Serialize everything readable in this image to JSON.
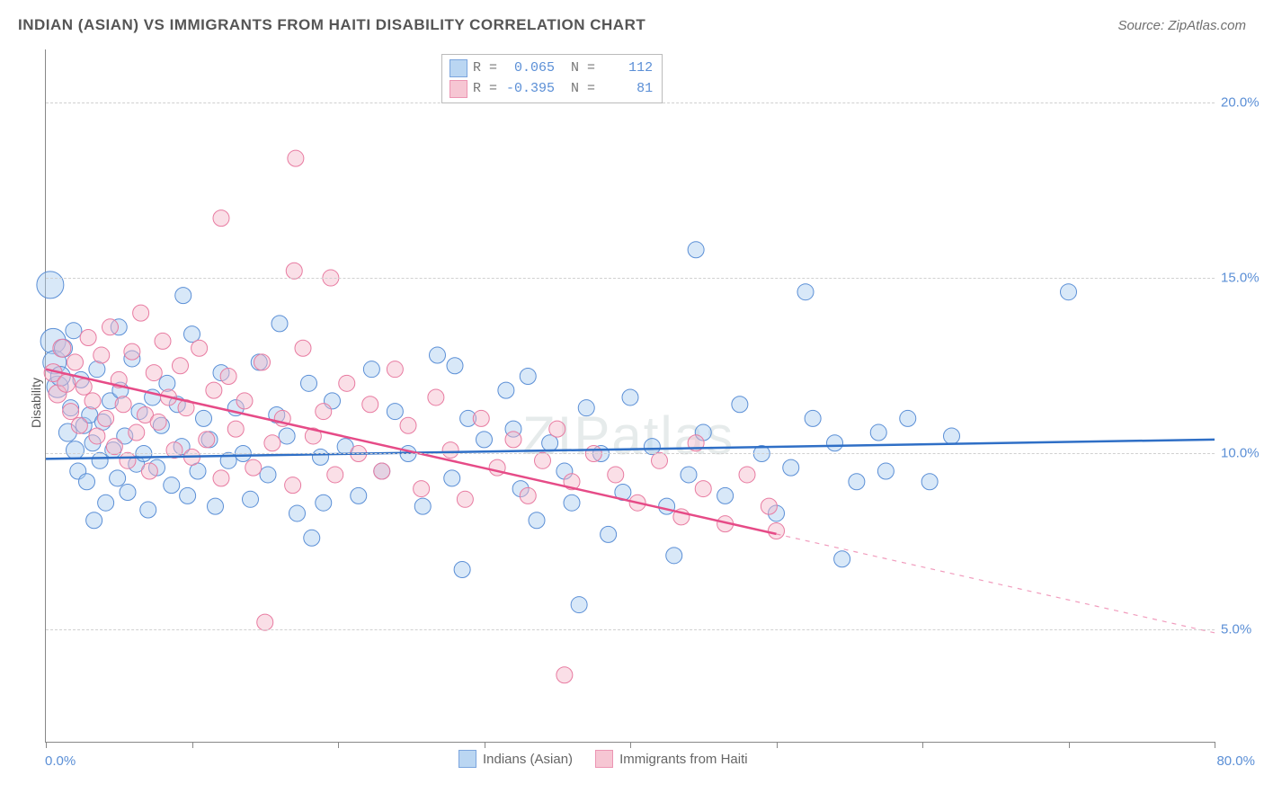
{
  "title": "INDIAN (ASIAN) VS IMMIGRANTS FROM HAITI DISABILITY CORRELATION CHART",
  "source": "Source: ZipAtlas.com",
  "watermark": "ZIPatlas",
  "y_axis_title": "Disability",
  "chart": {
    "type": "scatter",
    "xlim": [
      0,
      80
    ],
    "ylim_visible": [
      1.8,
      21.5
    ],
    "y_ticks": [
      5.0,
      10.0,
      15.0,
      20.0
    ],
    "y_tick_labels": [
      "5.0%",
      "10.0%",
      "15.0%",
      "20.0%"
    ],
    "x_tick_positions": [
      0,
      10,
      20,
      30,
      40,
      50,
      60,
      70,
      80
    ],
    "x_label_start": "0.0%",
    "x_label_end": "80.0%",
    "background_color": "#ffffff",
    "grid_color": "#d0d0d0",
    "axis_color": "#888888",
    "marker_opacity": 0.45,
    "marker_radius_default": 9
  },
  "series": [
    {
      "key": "indians",
      "label": "Indians (Asian)",
      "fill": "#a9cdf0",
      "stroke": "#5b8fd6",
      "trend_color": "#2f6fc6",
      "R": "0.065",
      "N": "112",
      "trend": {
        "x1": 0,
        "y1": 9.85,
        "x2": 80,
        "y2": 10.4
      },
      "trend_solid_to_x": 80,
      "points": [
        {
          "x": 0.3,
          "y": 14.8,
          "r": 15
        },
        {
          "x": 0.5,
          "y": 13.2,
          "r": 14
        },
        {
          "x": 0.6,
          "y": 12.6,
          "r": 13
        },
        {
          "x": 0.8,
          "y": 11.9,
          "r": 12
        },
        {
          "x": 1.0,
          "y": 12.2,
          "r": 11
        },
        {
          "x": 1.2,
          "y": 13.0,
          "r": 10
        },
        {
          "x": 1.5,
          "y": 10.6,
          "r": 10
        },
        {
          "x": 1.7,
          "y": 11.3,
          "r": 9
        },
        {
          "x": 1.9,
          "y": 13.5,
          "r": 9
        },
        {
          "x": 2.0,
          "y": 10.1,
          "r": 10
        },
        {
          "x": 2.2,
          "y": 9.5,
          "r": 9
        },
        {
          "x": 2.4,
          "y": 12.1,
          "r": 9
        },
        {
          "x": 2.6,
          "y": 10.8,
          "r": 9
        },
        {
          "x": 2.8,
          "y": 9.2,
          "r": 9
        },
        {
          "x": 3.0,
          "y": 11.1,
          "r": 9
        },
        {
          "x": 3.2,
          "y": 10.3,
          "r": 9
        },
        {
          "x": 3.5,
          "y": 12.4,
          "r": 9
        },
        {
          "x": 3.7,
          "y": 9.8,
          "r": 9
        },
        {
          "x": 3.9,
          "y": 10.9,
          "r": 9
        },
        {
          "x": 4.1,
          "y": 8.6,
          "r": 9
        },
        {
          "x": 4.4,
          "y": 11.5,
          "r": 9
        },
        {
          "x": 4.6,
          "y": 10.1,
          "r": 9
        },
        {
          "x": 4.9,
          "y": 9.3,
          "r": 9
        },
        {
          "x": 5.1,
          "y": 11.8,
          "r": 9
        },
        {
          "x": 5.4,
          "y": 10.5,
          "r": 9
        },
        {
          "x": 5.6,
          "y": 8.9,
          "r": 9
        },
        {
          "x": 5.9,
          "y": 12.7,
          "r": 9
        },
        {
          "x": 6.2,
          "y": 9.7,
          "r": 9
        },
        {
          "x": 6.4,
          "y": 11.2,
          "r": 9
        },
        {
          "x": 6.7,
          "y": 10.0,
          "r": 9
        },
        {
          "x": 7.0,
          "y": 8.4,
          "r": 9
        },
        {
          "x": 7.3,
          "y": 11.6,
          "r": 9
        },
        {
          "x": 7.6,
          "y": 9.6,
          "r": 9
        },
        {
          "x": 7.9,
          "y": 10.8,
          "r": 9
        },
        {
          "x": 8.3,
          "y": 12.0,
          "r": 9
        },
        {
          "x": 8.6,
          "y": 9.1,
          "r": 9
        },
        {
          "x": 9.0,
          "y": 11.4,
          "r": 9
        },
        {
          "x": 9.3,
          "y": 10.2,
          "r": 9
        },
        {
          "x": 9.7,
          "y": 8.8,
          "r": 9
        },
        {
          "x": 10.0,
          "y": 13.4,
          "r": 9
        },
        {
          "x": 10.4,
          "y": 9.5,
          "r": 9
        },
        {
          "x": 10.8,
          "y": 11.0,
          "r": 9
        },
        {
          "x": 11.2,
          "y": 10.4,
          "r": 9
        },
        {
          "x": 11.6,
          "y": 8.5,
          "r": 9
        },
        {
          "x": 12.0,
          "y": 12.3,
          "r": 9
        },
        {
          "x": 12.5,
          "y": 9.8,
          "r": 9
        },
        {
          "x": 13.0,
          "y": 11.3,
          "r": 9
        },
        {
          "x": 13.5,
          "y": 10.0,
          "r": 9
        },
        {
          "x": 14.0,
          "y": 8.7,
          "r": 9
        },
        {
          "x": 14.6,
          "y": 12.6,
          "r": 9
        },
        {
          "x": 15.2,
          "y": 9.4,
          "r": 9
        },
        {
          "x": 15.8,
          "y": 11.1,
          "r": 9
        },
        {
          "x": 16.5,
          "y": 10.5,
          "r": 9
        },
        {
          "x": 16.0,
          "y": 13.7,
          "r": 9
        },
        {
          "x": 17.2,
          "y": 8.3,
          "r": 9
        },
        {
          "x": 18.0,
          "y": 12.0,
          "r": 9
        },
        {
          "x": 18.2,
          "y": 7.6,
          "r": 9
        },
        {
          "x": 18.8,
          "y": 9.9,
          "r": 9
        },
        {
          "x": 19.6,
          "y": 11.5,
          "r": 9
        },
        {
          "x": 19.0,
          "y": 8.6,
          "r": 9
        },
        {
          "x": 20.5,
          "y": 10.2,
          "r": 9
        },
        {
          "x": 21.4,
          "y": 8.8,
          "r": 9
        },
        {
          "x": 22.3,
          "y": 12.4,
          "r": 9
        },
        {
          "x": 23.0,
          "y": 9.5,
          "r": 9
        },
        {
          "x": 23.9,
          "y": 11.2,
          "r": 9
        },
        {
          "x": 24.8,
          "y": 10.0,
          "r": 9
        },
        {
          "x": 25.8,
          "y": 8.5,
          "r": 9
        },
        {
          "x": 26.8,
          "y": 12.8,
          "r": 9
        },
        {
          "x": 27.8,
          "y": 9.3,
          "r": 9
        },
        {
          "x": 28.9,
          "y": 11.0,
          "r": 9
        },
        {
          "x": 28.0,
          "y": 12.5,
          "r": 9
        },
        {
          "x": 30.0,
          "y": 10.4,
          "r": 9
        },
        {
          "x": 28.5,
          "y": 6.7,
          "r": 9
        },
        {
          "x": 31.5,
          "y": 11.8,
          "r": 9
        },
        {
          "x": 32.0,
          "y": 10.7,
          "r": 9
        },
        {
          "x": 32.5,
          "y": 9.0,
          "r": 9
        },
        {
          "x": 33.0,
          "y": 12.2,
          "r": 9
        },
        {
          "x": 33.6,
          "y": 8.1,
          "r": 9
        },
        {
          "x": 34.5,
          "y": 10.3,
          "r": 9
        },
        {
          "x": 35.5,
          "y": 9.5,
          "r": 9
        },
        {
          "x": 36.0,
          "y": 8.6,
          "r": 9
        },
        {
          "x": 37.0,
          "y": 11.3,
          "r": 9
        },
        {
          "x": 36.5,
          "y": 5.7,
          "r": 9
        },
        {
          "x": 38.0,
          "y": 10.0,
          "r": 9
        },
        {
          "x": 38.5,
          "y": 7.7,
          "r": 9
        },
        {
          "x": 39.5,
          "y": 8.9,
          "r": 9
        },
        {
          "x": 40.0,
          "y": 11.6,
          "r": 9
        },
        {
          "x": 41.5,
          "y": 10.2,
          "r": 9
        },
        {
          "x": 42.5,
          "y": 8.5,
          "r": 9
        },
        {
          "x": 43.0,
          "y": 7.1,
          "r": 9
        },
        {
          "x": 44.0,
          "y": 9.4,
          "r": 9
        },
        {
          "x": 44.5,
          "y": 15.8,
          "r": 9
        },
        {
          "x": 45.0,
          "y": 10.6,
          "r": 9
        },
        {
          "x": 46.5,
          "y": 8.8,
          "r": 9
        },
        {
          "x": 47.5,
          "y": 11.4,
          "r": 9
        },
        {
          "x": 49.0,
          "y": 10.0,
          "r": 9
        },
        {
          "x": 50.0,
          "y": 8.3,
          "r": 9
        },
        {
          "x": 51.0,
          "y": 9.6,
          "r": 9
        },
        {
          "x": 52.5,
          "y": 11.0,
          "r": 9
        },
        {
          "x": 52.0,
          "y": 14.6,
          "r": 9
        },
        {
          "x": 54.0,
          "y": 10.3,
          "r": 9
        },
        {
          "x": 54.5,
          "y": 7.0,
          "r": 9
        },
        {
          "x": 55.5,
          "y": 9.2,
          "r": 9
        },
        {
          "x": 57.0,
          "y": 10.6,
          "r": 9
        },
        {
          "x": 57.5,
          "y": 9.5,
          "r": 9
        },
        {
          "x": 59.0,
          "y": 11.0,
          "r": 9
        },
        {
          "x": 60.5,
          "y": 9.2,
          "r": 9
        },
        {
          "x": 62.0,
          "y": 10.5,
          "r": 9
        },
        {
          "x": 70.0,
          "y": 14.6,
          "r": 9
        },
        {
          "x": 9.4,
          "y": 14.5,
          "r": 9
        },
        {
          "x": 5.0,
          "y": 13.6,
          "r": 9
        },
        {
          "x": 3.3,
          "y": 8.1,
          "r": 9
        }
      ]
    },
    {
      "key": "haiti",
      "label": "Immigrants from Haiti",
      "fill": "#f5b9c9",
      "stroke": "#e87ba1",
      "trend_color": "#e64b87",
      "R": "-0.395",
      "N": "81",
      "trend": {
        "x1": 0,
        "y1": 12.4,
        "x2": 80,
        "y2": 4.9
      },
      "trend_solid_to_x": 50,
      "points": [
        {
          "x": 0.5,
          "y": 12.3,
          "r": 10
        },
        {
          "x": 0.8,
          "y": 11.7,
          "r": 10
        },
        {
          "x": 1.1,
          "y": 13.0,
          "r": 10
        },
        {
          "x": 1.4,
          "y": 12.0,
          "r": 10
        },
        {
          "x": 1.7,
          "y": 11.2,
          "r": 9
        },
        {
          "x": 2.0,
          "y": 12.6,
          "r": 9
        },
        {
          "x": 2.3,
          "y": 10.8,
          "r": 9
        },
        {
          "x": 2.6,
          "y": 11.9,
          "r": 9
        },
        {
          "x": 2.9,
          "y": 13.3,
          "r": 9
        },
        {
          "x": 3.2,
          "y": 11.5,
          "r": 9
        },
        {
          "x": 3.5,
          "y": 10.5,
          "r": 9
        },
        {
          "x": 3.8,
          "y": 12.8,
          "r": 9
        },
        {
          "x": 4.1,
          "y": 11.0,
          "r": 9
        },
        {
          "x": 4.4,
          "y": 13.6,
          "r": 9
        },
        {
          "x": 4.7,
          "y": 10.2,
          "r": 9
        },
        {
          "x": 5.0,
          "y": 12.1,
          "r": 9
        },
        {
          "x": 5.3,
          "y": 11.4,
          "r": 9
        },
        {
          "x": 5.6,
          "y": 9.8,
          "r": 9
        },
        {
          "x": 5.9,
          "y": 12.9,
          "r": 9
        },
        {
          "x": 6.2,
          "y": 10.6,
          "r": 9
        },
        {
          "x": 6.5,
          "y": 14.0,
          "r": 9
        },
        {
          "x": 6.8,
          "y": 11.1,
          "r": 9
        },
        {
          "x": 7.1,
          "y": 9.5,
          "r": 9
        },
        {
          "x": 7.4,
          "y": 12.3,
          "r": 9
        },
        {
          "x": 7.7,
          "y": 10.9,
          "r": 9
        },
        {
          "x": 8.0,
          "y": 13.2,
          "r": 9
        },
        {
          "x": 8.4,
          "y": 11.6,
          "r": 9
        },
        {
          "x": 8.8,
          "y": 10.1,
          "r": 9
        },
        {
          "x": 9.2,
          "y": 12.5,
          "r": 9
        },
        {
          "x": 9.6,
          "y": 11.3,
          "r": 9
        },
        {
          "x": 10.0,
          "y": 9.9,
          "r": 9
        },
        {
          "x": 10.5,
          "y": 13.0,
          "r": 9
        },
        {
          "x": 11.0,
          "y": 10.4,
          "r": 9
        },
        {
          "x": 11.5,
          "y": 11.8,
          "r": 9
        },
        {
          "x": 12.0,
          "y": 9.3,
          "r": 9
        },
        {
          "x": 12.0,
          "y": 16.7,
          "r": 9
        },
        {
          "x": 12.5,
          "y": 12.2,
          "r": 9
        },
        {
          "x": 13.0,
          "y": 10.7,
          "r": 9
        },
        {
          "x": 13.6,
          "y": 11.5,
          "r": 9
        },
        {
          "x": 14.2,
          "y": 9.6,
          "r": 9
        },
        {
          "x": 14.8,
          "y": 12.6,
          "r": 9
        },
        {
          "x": 15.5,
          "y": 10.3,
          "r": 9
        },
        {
          "x": 15.0,
          "y": 5.2,
          "r": 9
        },
        {
          "x": 16.2,
          "y": 11.0,
          "r": 9
        },
        {
          "x": 16.9,
          "y": 9.1,
          "r": 9
        },
        {
          "x": 17.1,
          "y": 18.4,
          "r": 9
        },
        {
          "x": 17.6,
          "y": 13.0,
          "r": 9
        },
        {
          "x": 17.0,
          "y": 15.2,
          "r": 9
        },
        {
          "x": 18.3,
          "y": 10.5,
          "r": 9
        },
        {
          "x": 19.0,
          "y": 11.2,
          "r": 9
        },
        {
          "x": 19.5,
          "y": 15.0,
          "r": 9
        },
        {
          "x": 19.8,
          "y": 9.4,
          "r": 9
        },
        {
          "x": 20.6,
          "y": 12.0,
          "r": 9
        },
        {
          "x": 21.4,
          "y": 10.0,
          "r": 9
        },
        {
          "x": 22.2,
          "y": 11.4,
          "r": 9
        },
        {
          "x": 23.0,
          "y": 9.5,
          "r": 9
        },
        {
          "x": 23.9,
          "y": 12.4,
          "r": 9
        },
        {
          "x": 24.8,
          "y": 10.8,
          "r": 9
        },
        {
          "x": 25.7,
          "y": 9.0,
          "r": 9
        },
        {
          "x": 26.7,
          "y": 11.6,
          "r": 9
        },
        {
          "x": 27.7,
          "y": 10.1,
          "r": 9
        },
        {
          "x": 28.7,
          "y": 8.7,
          "r": 9
        },
        {
          "x": 29.8,
          "y": 11.0,
          "r": 9
        },
        {
          "x": 30.9,
          "y": 9.6,
          "r": 9
        },
        {
          "x": 32.0,
          "y": 10.4,
          "r": 9
        },
        {
          "x": 33.0,
          "y": 8.8,
          "r": 9
        },
        {
          "x": 34.0,
          "y": 9.8,
          "r": 9
        },
        {
          "x": 35.5,
          "y": 3.7,
          "r": 9
        },
        {
          "x": 35.0,
          "y": 10.7,
          "r": 9
        },
        {
          "x": 36.0,
          "y": 9.2,
          "r": 9
        },
        {
          "x": 37.5,
          "y": 10.0,
          "r": 9
        },
        {
          "x": 39.0,
          "y": 9.4,
          "r": 9
        },
        {
          "x": 40.5,
          "y": 8.6,
          "r": 9
        },
        {
          "x": 42.0,
          "y": 9.8,
          "r": 9
        },
        {
          "x": 43.5,
          "y": 8.2,
          "r": 9
        },
        {
          "x": 44.5,
          "y": 10.3,
          "r": 9
        },
        {
          "x": 45.0,
          "y": 9.0,
          "r": 9
        },
        {
          "x": 46.5,
          "y": 8.0,
          "r": 9
        },
        {
          "x": 48.0,
          "y": 9.4,
          "r": 9
        },
        {
          "x": 49.5,
          "y": 8.5,
          "r": 9
        },
        {
          "x": 50.0,
          "y": 7.8,
          "r": 9
        }
      ]
    }
  ],
  "stats_legend": {
    "R_label": "R =",
    "N_label": "N ="
  }
}
